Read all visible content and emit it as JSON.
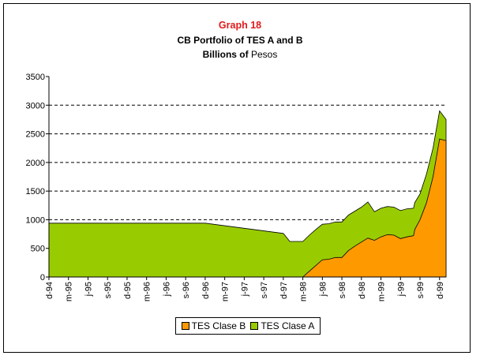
{
  "chart_data": {
    "type": "area",
    "stacked": true,
    "title": "Graph 18",
    "subtitle": "CB Portfolio of TES  A and B",
    "units_bold": "Billions of",
    "units_plain": "Pesos",
    "ylim": [
      0,
      3500
    ],
    "yticks": [
      "0",
      "500",
      "1000",
      "1500",
      "2000",
      "2500",
      "3000",
      "3500"
    ],
    "ytick_values": [
      0,
      500,
      1000,
      1500,
      2000,
      2500,
      3000,
      3500
    ],
    "grid": "horizontal dashed",
    "xlabels": [
      "d-94",
      "m-95",
      "j-95",
      "s-95",
      "d-95",
      "m-96",
      "j-96",
      "s-96",
      "d-96",
      "m-97",
      "j-97",
      "s-97",
      "d-97",
      "m-98",
      "j-98",
      "s-98",
      "d-98",
      "m-99",
      "j-99",
      "s-99",
      "d-99"
    ],
    "x_range_months": [
      0,
      61
    ],
    "legend_position": "bottom-center",
    "series": [
      {
        "name": "TES Clase B",
        "color": "#ff9900",
        "points": [
          [
            0,
            0
          ],
          [
            39,
            0
          ],
          [
            40,
            100
          ],
          [
            42,
            300
          ],
          [
            43,
            310
          ],
          [
            44,
            340
          ],
          [
            45,
            340
          ],
          [
            46,
            460
          ],
          [
            47,
            540
          ],
          [
            48,
            610
          ],
          [
            49,
            680
          ],
          [
            50,
            640
          ],
          [
            51,
            700
          ],
          [
            52,
            740
          ],
          [
            53,
            730
          ],
          [
            54,
            670
          ],
          [
            55,
            700
          ],
          [
            56,
            720
          ],
          [
            56.2,
            830
          ],
          [
            57,
            1000
          ],
          [
            58,
            1300
          ],
          [
            59,
            1750
          ],
          [
            60,
            2410
          ],
          [
            61,
            2380
          ]
        ]
      },
      {
        "name": "TES Clase A",
        "color": "#99cc00",
        "points": [
          [
            0,
            940
          ],
          [
            24,
            940
          ],
          [
            36,
            760
          ],
          [
            37,
            620
          ],
          [
            39,
            620
          ],
          [
            40,
            730
          ],
          [
            41,
            830
          ],
          [
            42,
            920
          ],
          [
            43,
            930
          ],
          [
            44,
            960
          ],
          [
            45,
            960
          ],
          [
            46,
            1080
          ],
          [
            47,
            1150
          ],
          [
            48,
            1220
          ],
          [
            49,
            1310
          ],
          [
            50,
            1140
          ],
          [
            51,
            1200
          ],
          [
            52,
            1230
          ],
          [
            53,
            1220
          ],
          [
            54,
            1160
          ],
          [
            55,
            1190
          ],
          [
            56,
            1200
          ],
          [
            56.2,
            1300
          ],
          [
            57,
            1450
          ],
          [
            58,
            1800
          ],
          [
            59,
            2250
          ],
          [
            60,
            2900
          ],
          [
            61,
            2750
          ]
        ]
      }
    ]
  }
}
